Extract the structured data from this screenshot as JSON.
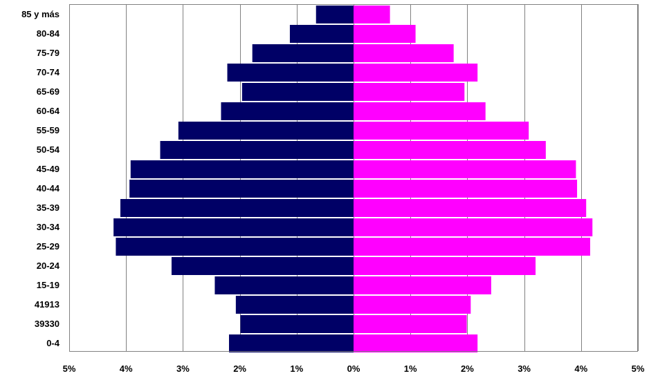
{
  "chart_data": {
    "type": "bar",
    "orientation": "horizontal",
    "layout": "population-pyramid",
    "title": "",
    "xlabel": "",
    "ylabel": "",
    "categories": [
      "85 y más",
      "80-84",
      "75-79",
      "70-74",
      "65-69",
      "60-64",
      "55-59",
      "50-54",
      "45-49",
      "40-44",
      "35-39",
      "30-34",
      "25-29",
      "20-24",
      "15-19",
      "41913",
      "39330",
      "0-4"
    ],
    "series": [
      {
        "side": "left",
        "color": "#000066",
        "values": [
          0.66,
          1.12,
          1.78,
          2.22,
          1.96,
          2.33,
          3.08,
          3.4,
          3.92,
          3.94,
          4.1,
          4.22,
          4.18,
          3.2,
          2.44,
          2.07,
          1.99,
          2.19
        ]
      },
      {
        "side": "right",
        "color": "#ff00ff",
        "values": [
          0.64,
          1.09,
          1.76,
          2.18,
          1.95,
          2.32,
          3.08,
          3.38,
          3.91,
          3.93,
          4.09,
          4.2,
          4.16,
          3.2,
          2.42,
          2.06,
          1.99,
          2.18
        ]
      }
    ],
    "xlim": [
      -5,
      5
    ],
    "xticks": [
      "5%",
      "4%",
      "3%",
      "2%",
      "1%",
      "0%",
      "1%",
      "2%",
      "3%",
      "4%",
      "5%"
    ],
    "grid": "vertical",
    "legend": "none",
    "frame_color": "#808080",
    "grid_color": "#808080"
  }
}
